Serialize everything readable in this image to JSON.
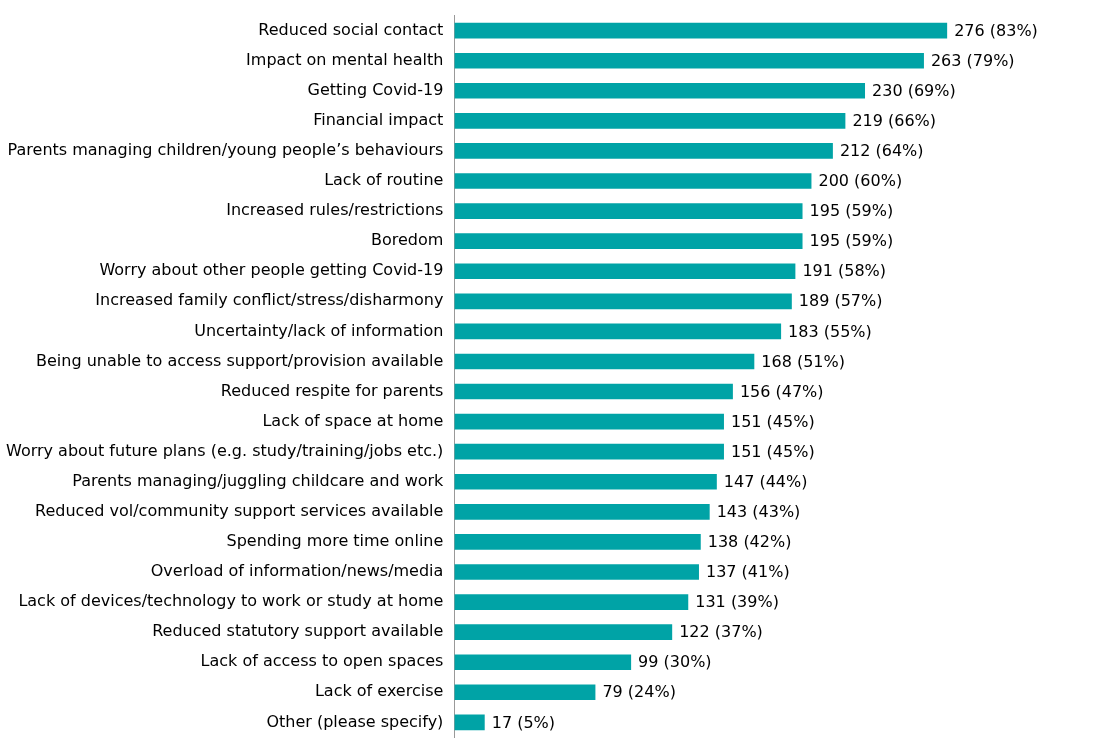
{
  "chart_data": {
    "type": "bar",
    "orientation": "horizontal",
    "color": "#00a3a6",
    "legend": false,
    "tick_labels": "y",
    "categories": [
      "Reduced social contact",
      "Impact on mental health",
      "Getting Covid-19",
      "Financial impact",
      "Parents managing children/young people’s behaviours",
      "Lack of routine",
      "Increased rules/restrictions",
      "Boredom",
      "Worry about other people getting Covid-19",
      "Increased family conflict/stress/disharmony",
      "Uncertainty/lack of information",
      "Being unable to access support/provision available",
      "Reduced respite for parents",
      "Lack of space at home",
      "Worry about future plans (e.g. study/training/jobs etc.)",
      "Parents managing/juggling childcare and work",
      "Reduced vol/community support services available",
      "Spending more time online",
      "Overload of information/news/media",
      "Lack of devices/technology to work or study at home",
      "Reduced statutory support available",
      "Lack of access to open spaces",
      "Lack of exercise",
      "Other (please specify)"
    ],
    "values": [
      276,
      263,
      230,
      219,
      212,
      200,
      195,
      195,
      191,
      189,
      183,
      168,
      156,
      151,
      151,
      147,
      143,
      138,
      137,
      131,
      122,
      99,
      79,
      17
    ],
    "value_labels": [
      "276 (83%)",
      "263 (79%)",
      "230 (69%)",
      "219 (66%)",
      "212 (64%)",
      "200 (60%)",
      "195 (59%)",
      "195 (59%)",
      "191 (58%)",
      "189 (57%)",
      "183 (55%)",
      "168 (51%)",
      "156 (47%)",
      "151 (45%)",
      "151 (45%)",
      "147 (44%)",
      "143 (43%)",
      "138 (42%)",
      "137 (41%)",
      "131 (39%)",
      "122 (37%)",
      "99 (30%)",
      "79 (24%)",
      "17 (5%)"
    ]
  }
}
